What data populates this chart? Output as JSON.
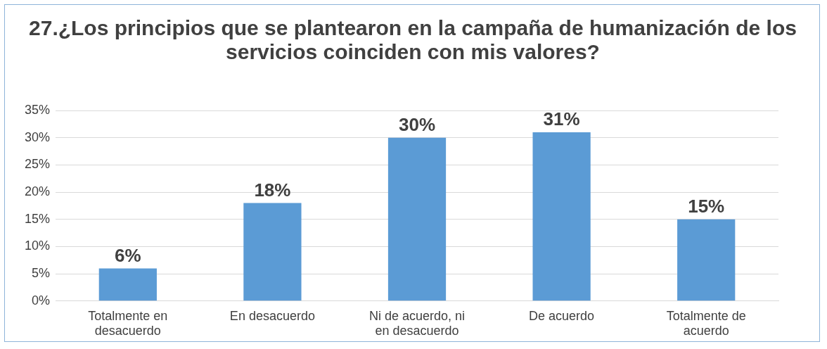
{
  "chart_data": {
    "type": "bar",
    "title": "27.¿Los principios que se plantearon en la campaña de humanización de los servicios coinciden con mis valores?",
    "categories": [
      "Totalmente en desacuerdo",
      "En desacuerdo",
      "Ni de acuerdo, ni en desacuerdo",
      "De acuerdo",
      "Totalmente de acuerdo"
    ],
    "values": [
      6,
      18,
      30,
      31,
      15
    ],
    "value_labels": [
      "6%",
      "18%",
      "30%",
      "31%",
      "15%"
    ],
    "color": "#5b9bd5",
    "ylim": [
      0,
      35
    ],
    "yticks": [
      {
        "value": 0,
        "label": "0%"
      },
      {
        "value": 5,
        "label": "5%"
      },
      {
        "value": 10,
        "label": "10%"
      },
      {
        "value": 15,
        "label": "15%"
      },
      {
        "value": 20,
        "label": "20%"
      },
      {
        "value": 25,
        "label": "25%"
      },
      {
        "value": 30,
        "label": "30%"
      },
      {
        "value": 35,
        "label": "35%"
      }
    ],
    "grid": "y",
    "legend": false
  }
}
